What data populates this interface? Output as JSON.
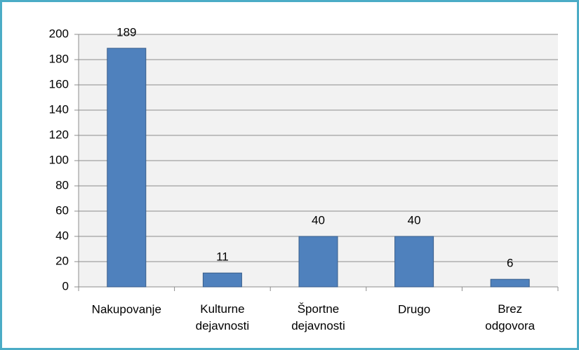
{
  "chart_data": {
    "type": "bar",
    "categories": [
      "Nakupovanje",
      "Kulturne dejavnosti",
      "Športne dejavnosti",
      "Drugo",
      "Brez odgovora"
    ],
    "values": [
      189,
      11,
      40,
      40,
      6
    ],
    "color": "#4f81bd",
    "ylim": [
      0,
      200
    ],
    "yticks": [
      0,
      20,
      40,
      60,
      80,
      100,
      120,
      140,
      160,
      180,
      200
    ],
    "grid": true,
    "data_labels": true
  }
}
